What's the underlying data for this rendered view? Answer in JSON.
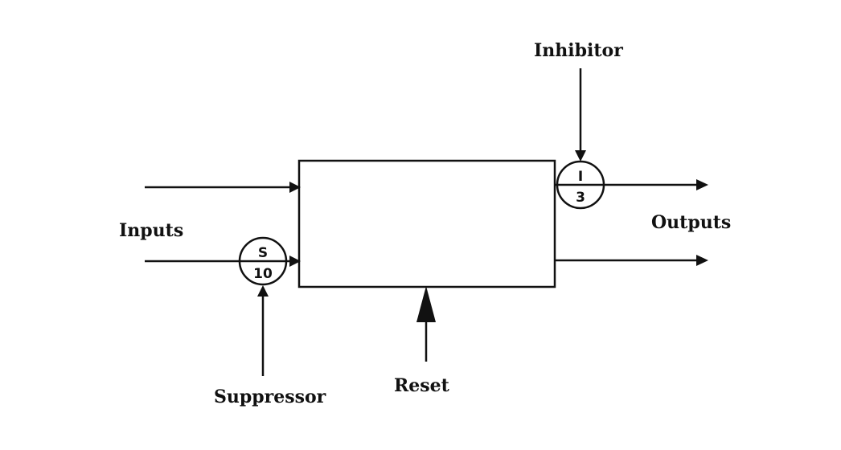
{
  "labels": {
    "inputs": "Inputs",
    "outputs": "Outputs",
    "inhibitor": "Inhibitor",
    "suppressor": "Suppressor",
    "reset": "Reset"
  },
  "nodes": {
    "suppressor": {
      "top": "S",
      "bottom": "10"
    },
    "inhibitor": {
      "top": "I",
      "bottom": "3"
    }
  }
}
